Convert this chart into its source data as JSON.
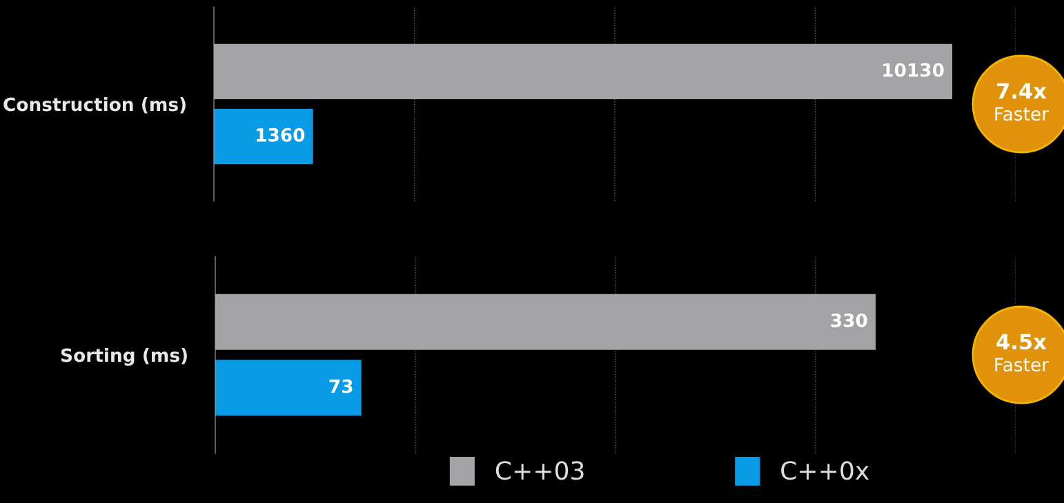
{
  "chart_data": [
    {
      "type": "bar",
      "orientation": "horizontal",
      "categories": [
        "Construction (ms)"
      ],
      "series": [
        {
          "name": "C++03",
          "color": "#a3a3a6",
          "values": [
            10130
          ]
        },
        {
          "name": "C++0x",
          "color": "#0a9be6",
          "values": [
            1360
          ]
        }
      ],
      "xlim": [
        0,
        11000
      ],
      "xticks": [
        {
          "value": 2750,
          "label": null
        },
        {
          "value": 5500,
          "label": null
        },
        {
          "value": 8250,
          "label": null
        },
        {
          "value": 11000,
          "label": null
        }
      ],
      "grid": "x",
      "tick_labels": "y",
      "data_labels": true,
      "legend": "bottom",
      "annotations": [
        "7.4x",
        "Faster"
      ]
    },
    {
      "type": "bar",
      "orientation": "horizontal",
      "categories": [
        "Sorting (ms)"
      ],
      "series": [
        {
          "color": "#a3a3a6",
          "values": [
            330
          ]
        },
        {
          "color": "#0a9be6",
          "values": [
            73
          ]
        }
      ],
      "xlim": [
        0,
        400
      ],
      "xticks": [
        {
          "value": 100,
          "label": null
        },
        {
          "value": 200,
          "label": null
        },
        {
          "value": 300,
          "label": null
        },
        {
          "value": 400,
          "label": null
        }
      ],
      "grid": "x",
      "tick_labels": "y",
      "data_labels": true,
      "annotations": [
        "4.5x",
        "Faster"
      ]
    }
  ]
}
